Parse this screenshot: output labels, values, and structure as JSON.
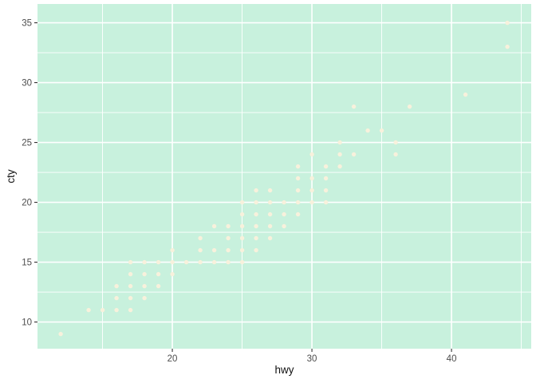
{
  "chart_data": {
    "type": "scatter",
    "title": "",
    "xlabel": "hwy",
    "ylabel": "cty",
    "x_ticks": [
      20,
      30,
      40
    ],
    "y_ticks": [
      10,
      15,
      20,
      25,
      30,
      35
    ],
    "x_minor_breaks": [
      15,
      25,
      35,
      45
    ],
    "y_minor_breaks": [
      12.5,
      17.5,
      22.5,
      27.5,
      32.5
    ],
    "xlim": [
      10.34,
      45.71
    ],
    "ylim": [
      7.77,
      36.57
    ],
    "grid": "major-and-minor, white on tinted panel",
    "legend": false,
    "points": [
      [
        12,
        9
      ],
      [
        14,
        11
      ],
      [
        15,
        11
      ],
      [
        16,
        11
      ],
      [
        17,
        11
      ],
      [
        16,
        12
      ],
      [
        17,
        12
      ],
      [
        18,
        12
      ],
      [
        16,
        13
      ],
      [
        17,
        13
      ],
      [
        18,
        13
      ],
      [
        19,
        13
      ],
      [
        17,
        14
      ],
      [
        18,
        14
      ],
      [
        19,
        14
      ],
      [
        20,
        14
      ],
      [
        17,
        15
      ],
      [
        18,
        15
      ],
      [
        19,
        15
      ],
      [
        20,
        15
      ],
      [
        21,
        15
      ],
      [
        22,
        15
      ],
      [
        23,
        15
      ],
      [
        24,
        15
      ],
      [
        25,
        15
      ],
      [
        20,
        16
      ],
      [
        22,
        16
      ],
      [
        23,
        16
      ],
      [
        24,
        16
      ],
      [
        25,
        16
      ],
      [
        26,
        16
      ],
      [
        22,
        17
      ],
      [
        24,
        17
      ],
      [
        25,
        17
      ],
      [
        26,
        17
      ],
      [
        27,
        17
      ],
      [
        23,
        18
      ],
      [
        24,
        18
      ],
      [
        25,
        18
      ],
      [
        26,
        18
      ],
      [
        27,
        18
      ],
      [
        28,
        18
      ],
      [
        25,
        19
      ],
      [
        26,
        19
      ],
      [
        27,
        19
      ],
      [
        28,
        19
      ],
      [
        29,
        19
      ],
      [
        25,
        20
      ],
      [
        26,
        20
      ],
      [
        27,
        20
      ],
      [
        28,
        20
      ],
      [
        29,
        20
      ],
      [
        30,
        20
      ],
      [
        31,
        20
      ],
      [
        26,
        21
      ],
      [
        27,
        21
      ],
      [
        29,
        21
      ],
      [
        30,
        21
      ],
      [
        31,
        21
      ],
      [
        29,
        22
      ],
      [
        30,
        22
      ],
      [
        31,
        22
      ],
      [
        29,
        23
      ],
      [
        31,
        23
      ],
      [
        32,
        23
      ],
      [
        30,
        24
      ],
      [
        32,
        24
      ],
      [
        33,
        24
      ],
      [
        36,
        24
      ],
      [
        32,
        25
      ],
      [
        36,
        25
      ],
      [
        34,
        26
      ],
      [
        35,
        26
      ],
      [
        33,
        28
      ],
      [
        37,
        28
      ],
      [
        41,
        29
      ],
      [
        44,
        33
      ],
      [
        44,
        35
      ]
    ]
  },
  "style": {
    "panel_bg": "#c8f1dd",
    "point_fill": "#f8f1dc",
    "grid_color": "#ffffff",
    "tick_mark_color": "#333333",
    "tick_text_color": "#4d4d4d",
    "axis_title_color": "#111111",
    "plot_bg": "#ffffff"
  }
}
